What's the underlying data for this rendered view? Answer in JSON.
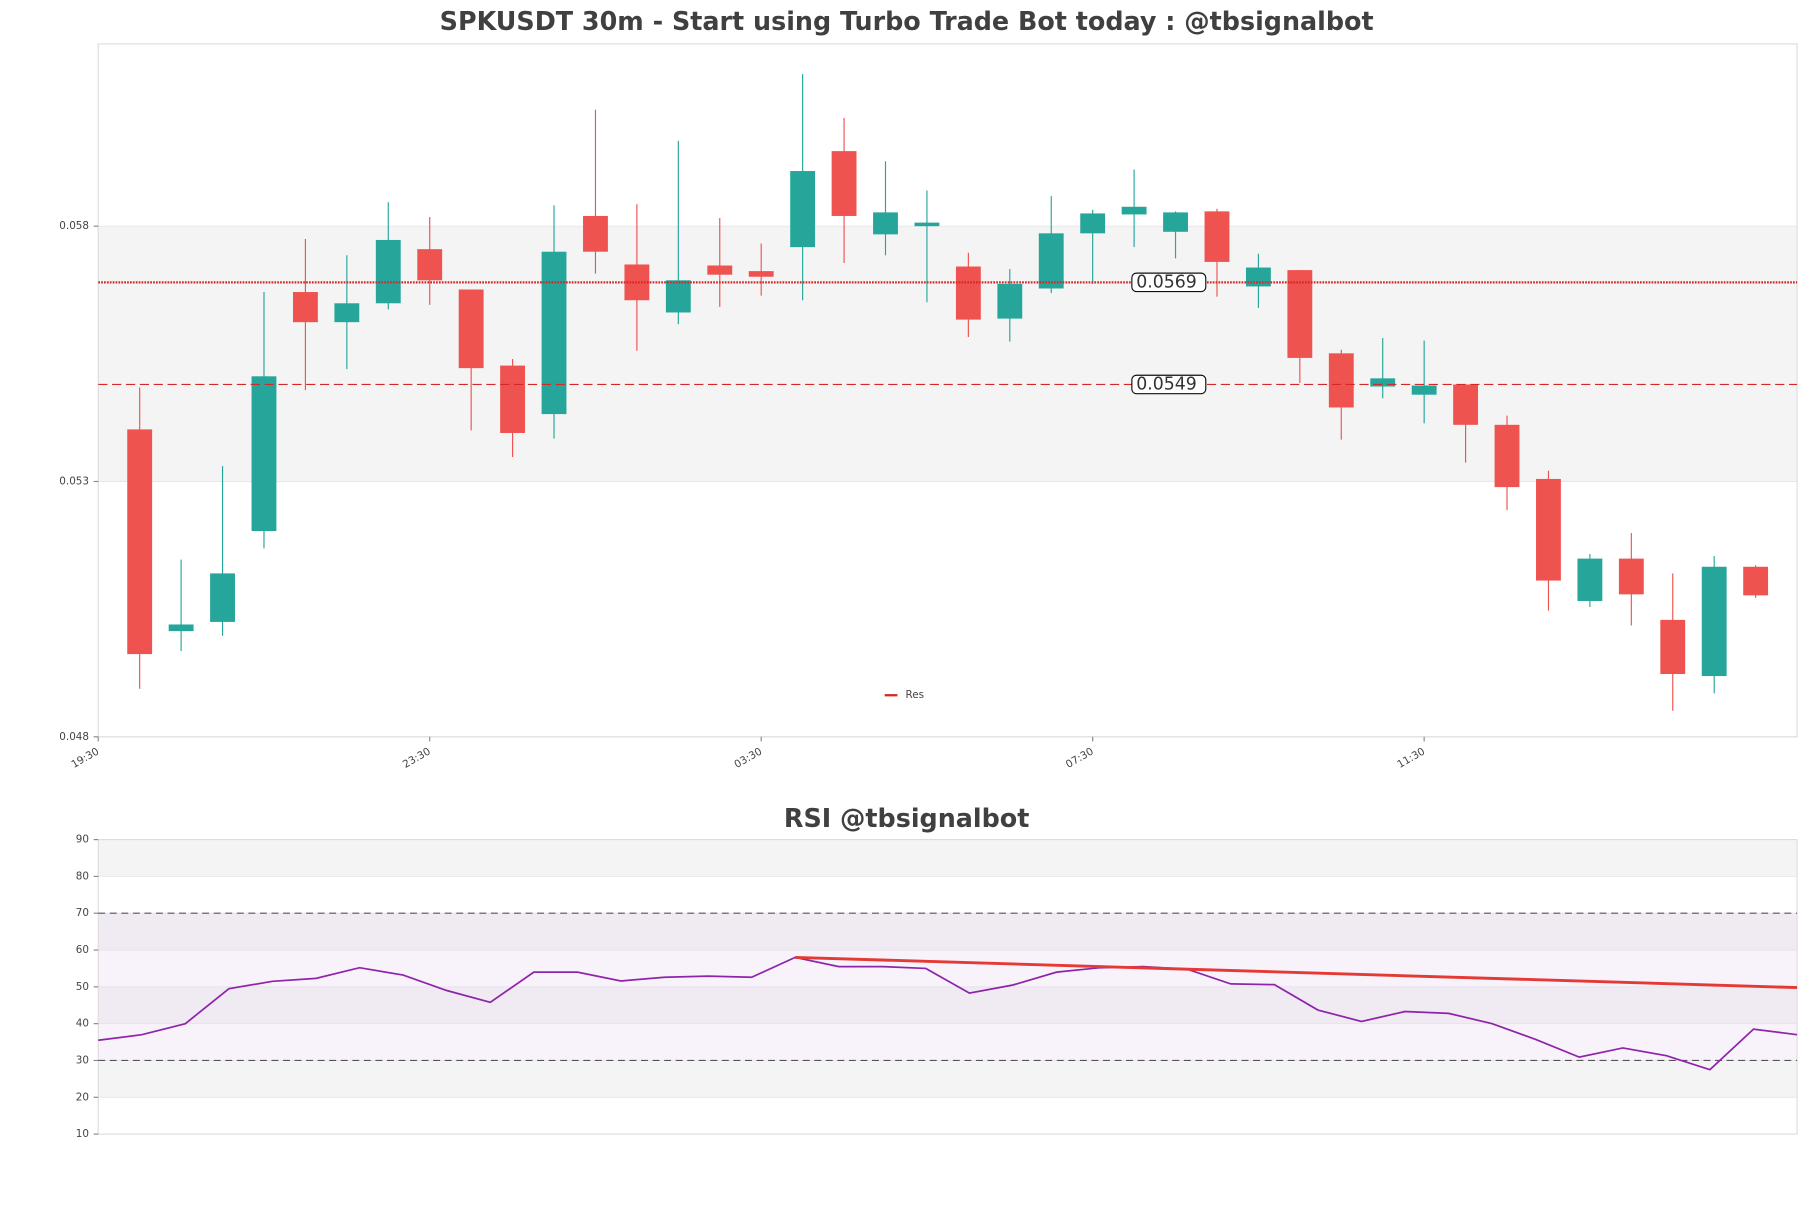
{
  "chart_data": [
    {
      "type": "candlestick",
      "title": "SPKUSDT 30m - Start using Turbo Trade Bot today : @tbsignalbot",
      "x": [
        0,
        1,
        2,
        3,
        4,
        5,
        6,
        7,
        8,
        9,
        10,
        11,
        12,
        13,
        14,
        15,
        16,
        17,
        18,
        19,
        20,
        21,
        22,
        23,
        24,
        25,
        26,
        27,
        28,
        29,
        30,
        31,
        32,
        33,
        34,
        35,
        36,
        37,
        38,
        39
      ],
      "open": [
        0.05402,
        0.05007,
        0.05025,
        0.05203,
        0.05671,
        0.05612,
        0.05649,
        0.05755,
        0.05676,
        0.05527,
        0.05432,
        0.0582,
        0.05725,
        0.05631,
        0.05723,
        0.05712,
        0.05759,
        0.05947,
        0.05784,
        0.058,
        0.05721,
        0.05619,
        0.05678,
        0.05786,
        0.05823,
        0.05789,
        0.05829,
        0.05682,
        0.05714,
        0.05551,
        0.05486,
        0.0547,
        0.0549,
        0.05411,
        0.05305,
        0.05066,
        0.05149,
        0.05029,
        0.04919,
        0.05133
      ],
      "high": [
        0.05484,
        0.05147,
        0.0533,
        0.05671,
        0.05775,
        0.05743,
        0.05847,
        0.05818,
        0.05676,
        0.0554,
        0.05841,
        0.06028,
        0.05843,
        0.05967,
        0.05816,
        0.05766,
        0.06098,
        0.06012,
        0.05927,
        0.0587,
        0.05748,
        0.05716,
        0.05859,
        0.05832,
        0.05911,
        0.05829,
        0.05834,
        0.05746,
        0.05714,
        0.05558,
        0.05581,
        0.05576,
        0.0549,
        0.05429,
        0.05321,
        0.05158,
        0.05199,
        0.0512,
        0.05154,
        0.05136
      ],
      "low": [
        0.04894,
        0.04968,
        0.04998,
        0.05169,
        0.05479,
        0.0552,
        0.05637,
        0.05646,
        0.054,
        0.05348,
        0.05384,
        0.05707,
        0.05556,
        0.05608,
        0.05642,
        0.05664,
        0.05655,
        0.05728,
        0.05743,
        0.05651,
        0.05583,
        0.05574,
        0.05669,
        0.05687,
        0.05759,
        0.05737,
        0.05662,
        0.0564,
        0.05493,
        0.05382,
        0.05463,
        0.05414,
        0.05337,
        0.05244,
        0.05047,
        0.05054,
        0.05018,
        0.04851,
        0.04885,
        0.05072
      ],
      "close": [
        0.04962,
        0.0502,
        0.0512,
        0.05506,
        0.05612,
        0.05649,
        0.05773,
        0.05694,
        0.05522,
        0.05395,
        0.0575,
        0.0575,
        0.05655,
        0.05694,
        0.05705,
        0.05701,
        0.05908,
        0.0582,
        0.05827,
        0.05807,
        0.05617,
        0.05687,
        0.05786,
        0.05825,
        0.05838,
        0.05827,
        0.0573,
        0.05719,
        0.05542,
        0.05445,
        0.05502,
        0.05488,
        0.05411,
        0.05289,
        0.05106,
        0.05149,
        0.05079,
        0.04923,
        0.05133,
        0.05077
      ],
      "up_color": "#26a69a",
      "down_color": "#ef5350",
      "xlim": [
        -1,
        40
      ],
      "xticks": [
        {
          "value": -1,
          "label": "19:30"
        },
        {
          "value": 7,
          "label": "23:30"
        },
        {
          "value": 15,
          "label": "03:30"
        },
        {
          "value": 23,
          "label": "07:30"
        },
        {
          "value": 31,
          "label": "11:30"
        }
      ],
      "ylim": [
        0.048,
        0.06157
      ],
      "yticks": [
        0.048,
        0.053,
        0.058
      ],
      "grid": "banded",
      "resistance": {
        "name": "Res",
        "color": "#d62728",
        "levels": [
          0.0569,
          0.0549
        ],
        "styles": [
          "dotted",
          "dashed"
        ]
      }
    },
    {
      "type": "line",
      "title": "RSI @tbsignalbot",
      "x": [
        0,
        1,
        2,
        3,
        4,
        5,
        6,
        7,
        8,
        9,
        10,
        11,
        12,
        13,
        14,
        15,
        16,
        17,
        18,
        19,
        20,
        21,
        22,
        23,
        24,
        25,
        26,
        27,
        28,
        29,
        30,
        31,
        32,
        33,
        34,
        35,
        36,
        37,
        38,
        39
      ],
      "values": [
        35.5,
        37,
        40,
        49.5,
        51.5,
        52.3,
        55.2,
        53.2,
        49,
        45.8,
        54,
        54,
        51.6,
        52.6,
        52.9,
        52.6,
        58,
        55.5,
        55.5,
        55,
        48.3,
        50.5,
        54,
        55.2,
        55.5,
        54.8,
        50.8,
        50.6,
        43.7,
        40.6,
        43.3,
        42.8,
        40,
        35.7,
        30.9,
        33.4,
        31.3,
        27.5,
        38.5,
        37
      ],
      "color": "#8e24aa",
      "trendline": {
        "x": [
          16,
          39
        ],
        "values": [
          58,
          49.8
        ],
        "color": "#e53935"
      },
      "xlim": [
        0,
        39
      ],
      "ylim": [
        10,
        90
      ],
      "yticks": [
        10,
        20,
        30,
        40,
        50,
        60,
        70,
        80,
        90
      ],
      "grid": "banded",
      "levels": [
        70,
        30
      ]
    }
  ]
}
